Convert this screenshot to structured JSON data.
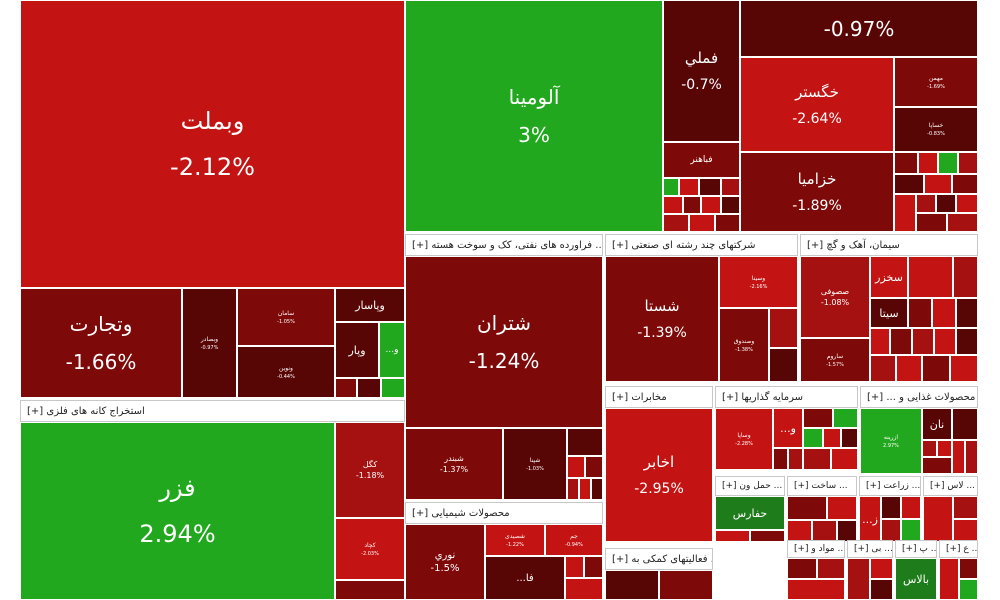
{
  "colors": {
    "green": "#22a81e",
    "red": "#c41313",
    "red_mid": "#a51010",
    "maroon": "#7e0909",
    "dark": "#580505"
  },
  "groups": [
    "استخراج کانه های فلزی [+]",
    "... فراورده های نفتی، کک و سوخت هسته [+]",
    "شرکتهای چند رشته ای صنعتی [+]",
    "سیمان، آهک و گچ [+]",
    "مخابرات [+]",
    "سرمایه گذاریها [+]",
    "محصولات غذایی و ... [+]",
    "محصولات شیمیایی [+]",
    "... فعالیتهای کمکی به [+]",
    "... حمل ون [+]",
    "... ساخت [+]",
    "... زراعت [+]",
    "... لاس [+]",
    "... مواد و [+]",
    "... بی [+]",
    "... پ [+]",
    "... ع [+]"
  ],
  "tiles": {
    "vbmellat": {
      "name": "وبملت",
      "pct": "-2.12%"
    },
    "vtejarat": {
      "name": "وتجارت",
      "pct": "-1.66%"
    },
    "vbsader": {
      "name": "وبصادر",
      "pct": "-0.97%"
    },
    "saman": {
      "name": "سامان",
      "pct": "-1.05%"
    },
    "vnovin": {
      "name": "ونوین",
      "pct": "-0.44%"
    },
    "vpasar": {
      "name": "وپاسار",
      "pct": ""
    },
    "vpar": {
      "name": "وپار",
      "pct": ""
    },
    "vo": {
      "name": "...و",
      "pct": ""
    },
    "aluminium": {
      "name": "آلومینا",
      "pct": "3%"
    },
    "fameli": {
      "name": "فملي",
      "pct": "-0.7%"
    },
    "fbahonar": {
      "name": "فباهنر",
      "pct": ""
    },
    "top_right": {
      "name": "",
      "pct": "-0.97%"
    },
    "khgostar": {
      "name": "خگستر",
      "pct": "-2.64%"
    },
    "mehan": {
      "name": "مهمن",
      "pct": "-1.69%"
    },
    "khsapa": {
      "name": "خساپا",
      "pct": "-0.83%"
    },
    "khzamia": {
      "name": "خزامیا",
      "pct": "-1.89%"
    },
    "fazar": {
      "name": "فزر",
      "pct": "2.94%"
    },
    "kagol": {
      "name": "کگل",
      "pct": "-1.18%"
    },
    "kachad": {
      "name": "کچاد",
      "pct": "-2.03%"
    },
    "shtran": {
      "name": "شتران",
      "pct": "-1.24%"
    },
    "shbandar": {
      "name": "شبندر",
      "pct": "-1.37%"
    },
    "shpna": {
      "name": "شپنا",
      "pct": "-1.03%"
    },
    "shasta": {
      "name": "شستا",
      "pct": "-1.39%"
    },
    "vsina": {
      "name": "وسینا",
      "pct": "-2.16%"
    },
    "vsabhan": {
      "name": "وصندوق",
      "pct": "-1.38%"
    },
    "sakhzar": {
      "name": "سخزر",
      "pct": ""
    },
    "sfufi": {
      "name": "صصوفی",
      "pct": "-1.08%"
    },
    "sita": {
      "name": "سیتا",
      "pct": ""
    },
    "sarood": {
      "name": "ساروم",
      "pct": "-1.57%"
    },
    "akhaber": {
      "name": "اخابر",
      "pct": "-2.95%"
    },
    "vsapa": {
      "name": "وساپا",
      "pct": "-2.28%"
    },
    "vo2": {
      "name": "...و",
      "pct": ""
    },
    "zarin": {
      "name": "ازرینه",
      "pct": "2.97%"
    },
    "nan": {
      "name": "نان",
      "pct": ""
    },
    "hafars": {
      "name": "حفارس",
      "pct": ""
    },
    "z": {
      "name": "...ز",
      "pct": ""
    },
    "balas": {
      "name": "بالاس",
      "pct": ""
    },
    "noori": {
      "name": "نوري",
      "pct": "-1.5%"
    },
    "shemgsh": {
      "name": "شصیدی",
      "pct": "-1.22%"
    },
    "jam": {
      "name": "جم",
      "pct": "-0.94%"
    },
    "fa": {
      "name": "...فا",
      "pct": ""
    }
  }
}
